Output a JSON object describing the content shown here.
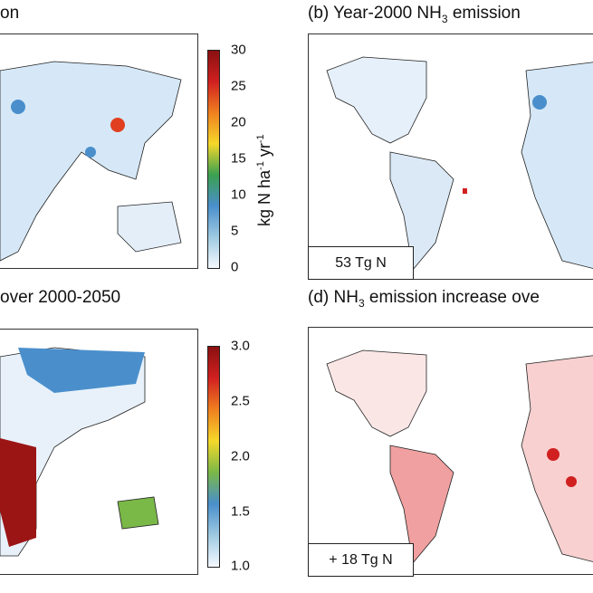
{
  "panels": {
    "a": {
      "title": "on"
    },
    "b": {
      "title_pre": "(b) Year-2000 NH",
      "title_sub": "3",
      "title_post": " emission",
      "total": "53 Tg N"
    },
    "c": {
      "title": "over 2000-2050"
    },
    "d": {
      "title_pre": "(d) NH",
      "title_sub": "3",
      "title_post": " emission increase ove",
      "total": "+ 18 Tg N"
    }
  },
  "colorbar_top": {
    "ticks": [
      "30",
      "25",
      "20",
      "15",
      "10",
      "5",
      "0"
    ],
    "range": [
      0,
      30
    ],
    "unit_pre": "kg N ha",
    "unit_exp1": "-1",
    "unit_mid": " yr",
    "unit_exp2": "-1",
    "colors": [
      "#f5f9ff",
      "#9ecae1",
      "#4a8fcc",
      "#3aa050",
      "#f5d82a",
      "#f08020",
      "#d02020",
      "#8b1010"
    ]
  },
  "colorbar_bottom": {
    "ticks": [
      "3.0",
      "2.5",
      "2.0",
      "1.5",
      "1.0"
    ],
    "range": [
      1.0,
      3.0
    ],
    "colors": [
      "#f5f9ff",
      "#9ecae1",
      "#4a8fcc",
      "#7ab848",
      "#f5d82a",
      "#f08020",
      "#d02020",
      "#8b1010"
    ]
  }
}
